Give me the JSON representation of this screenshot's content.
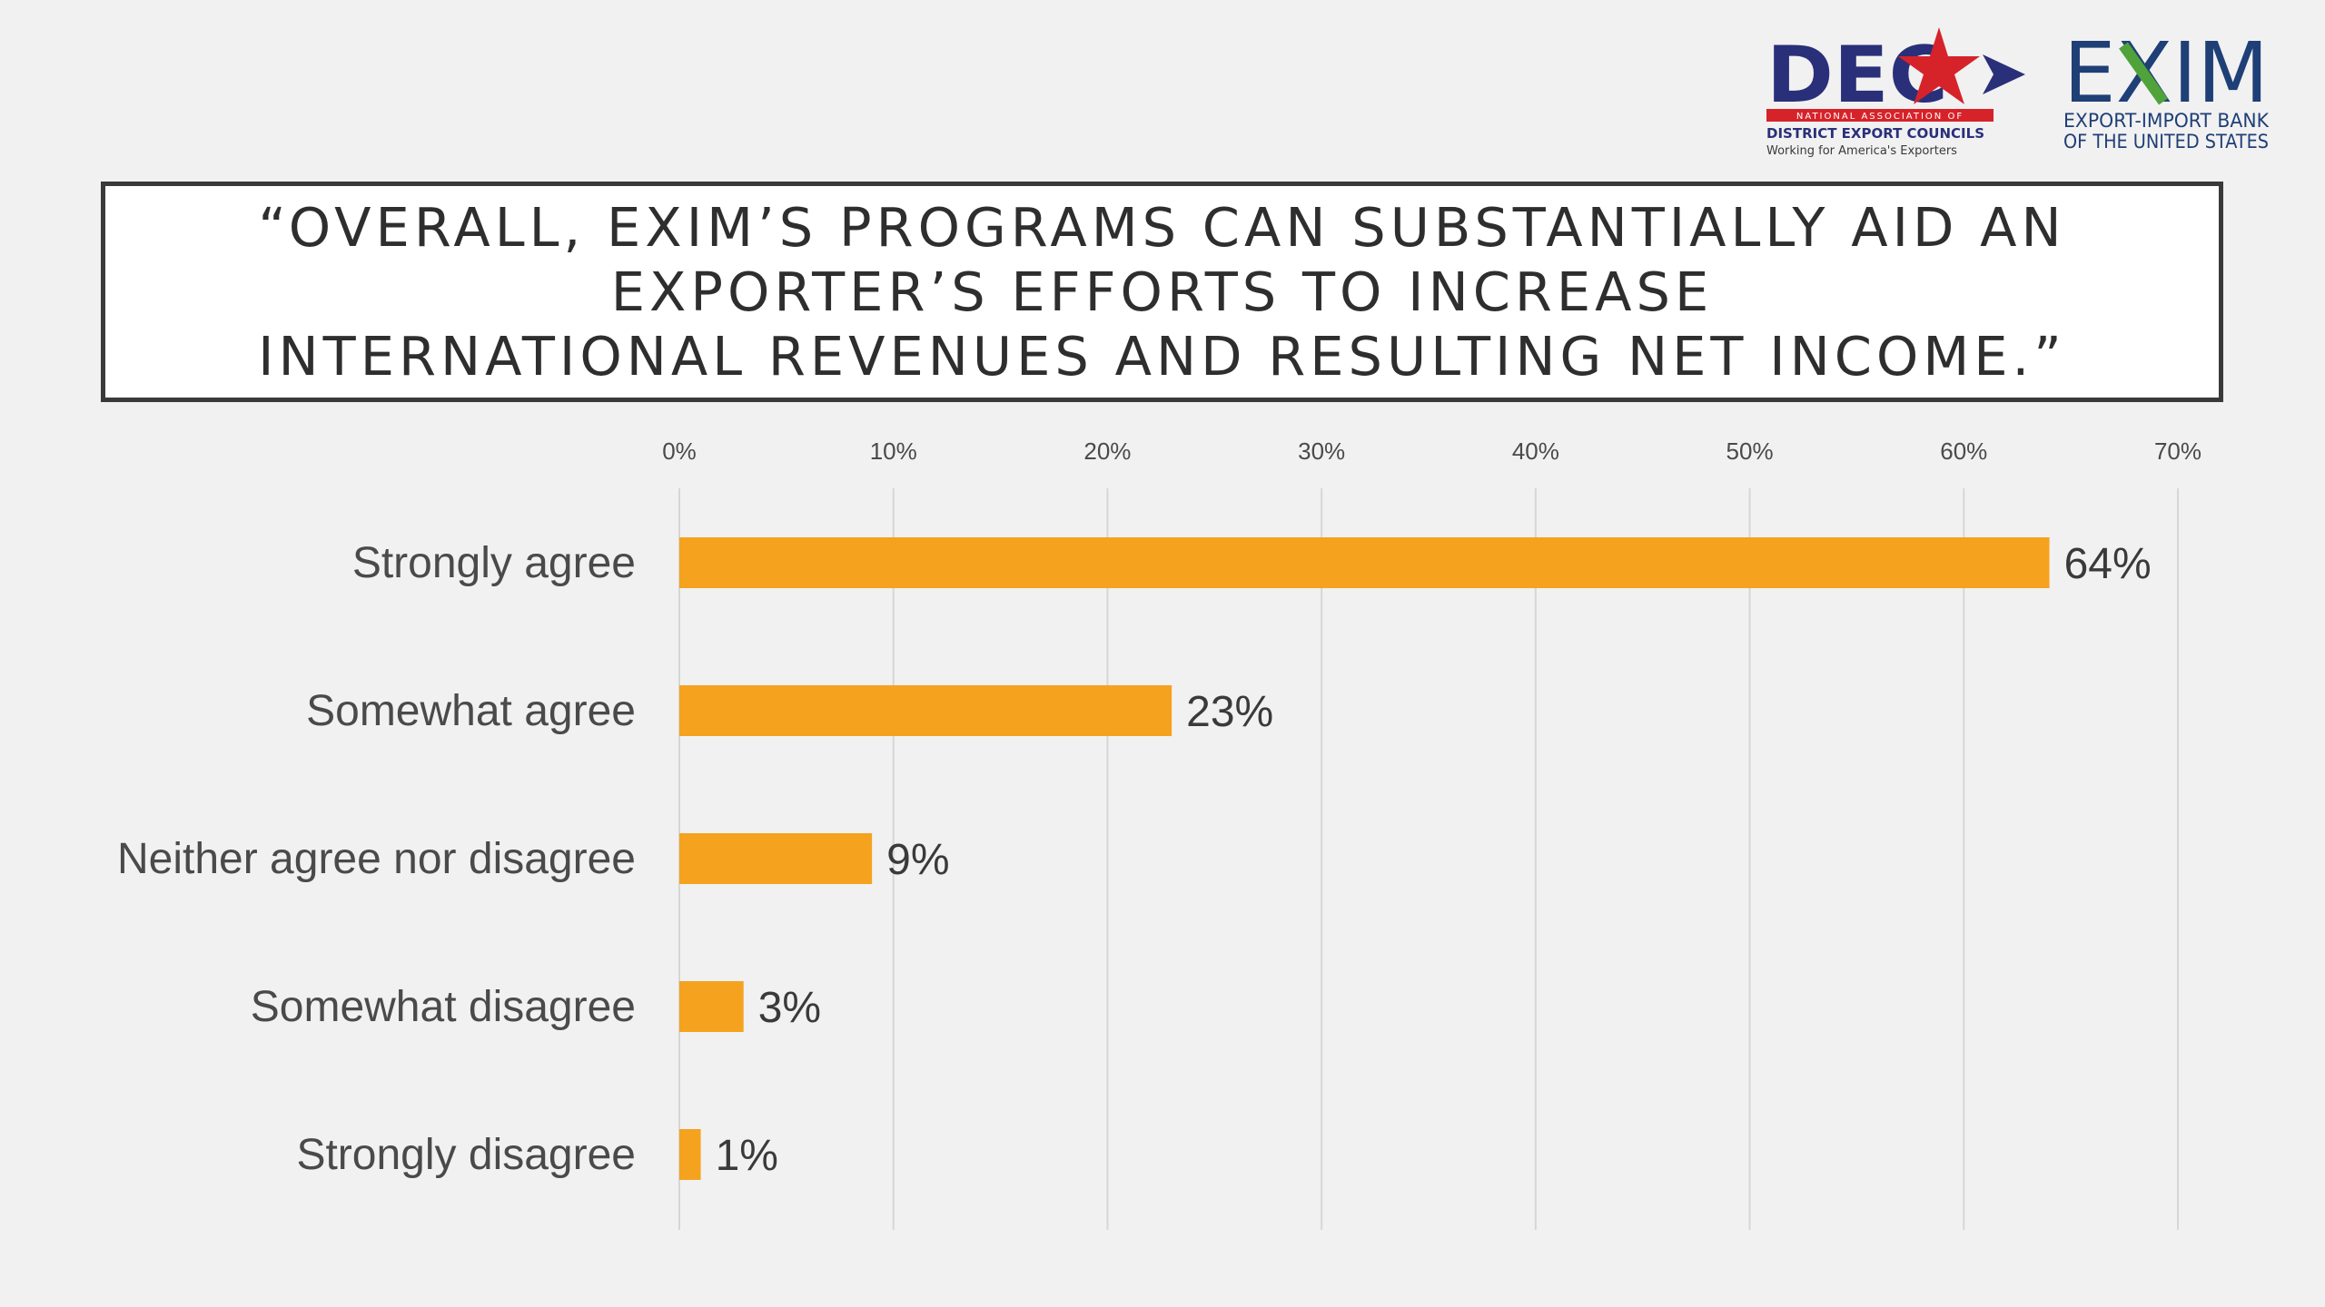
{
  "title": "“OVERALL, EXIM’S PROGRAMS CAN SUBSTANTIALLY AID AN\nEXPORTER’S EFFORTS TO INCREASE\nINTERNATIONAL REVENUES AND RESULTING NET INCOME.”",
  "logos": {
    "dec": {
      "wordmark": "DEC",
      "line1": "NATIONAL ASSOCIATION OF",
      "line2": "DISTRICT EXPORT COUNCILS",
      "line3": "Working for America's Exporters"
    },
    "exim": {
      "wordmark": "EXIM",
      "line1": "EXPORT-IMPORT BANK",
      "line2": "OF THE UNITED STATES"
    }
  },
  "colors": {
    "bar": "#F5A21E",
    "grid": "#d6d6d6",
    "dec_navy": "#2a2f7a",
    "dec_red": "#d6232a",
    "exim_navy": "#1f3f77",
    "exim_green": "#4fa33a"
  },
  "chart_data": {
    "type": "bar",
    "orientation": "horizontal",
    "categories": [
      "Strongly agree",
      "Somewhat agree",
      "Neither agree nor disagree",
      "Somewhat disagree",
      "Strongly disagree"
    ],
    "values": [
      64,
      23,
      9,
      3,
      1
    ],
    "value_labels": [
      "64%",
      "23%",
      "9%",
      "3%",
      "1%"
    ],
    "xlim": [
      0,
      70
    ],
    "xticks": [
      0,
      10,
      20,
      30,
      40,
      50,
      60,
      70
    ],
    "xtick_labels": [
      "0%",
      "10%",
      "20%",
      "30%",
      "40%",
      "50%",
      "60%",
      "70%"
    ],
    "grid": true,
    "axis_position": "top"
  }
}
